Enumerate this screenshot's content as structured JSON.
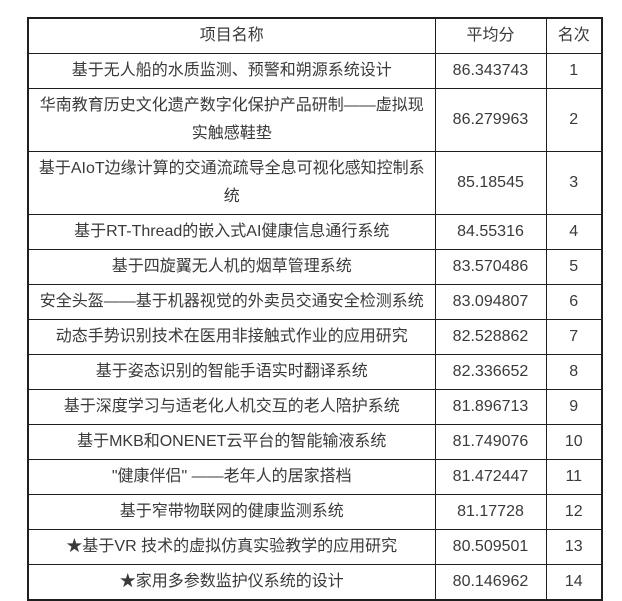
{
  "table": {
    "columns": [
      {
        "label": "项目名称"
      },
      {
        "label": "平均分"
      },
      {
        "label": "名次"
      }
    ],
    "rows": [
      {
        "name": "基于无人船的水质监测、预警和朔源系统设计",
        "score": "86.343743",
        "rank": "1"
      },
      {
        "name": "华南教育历史文化遗产数字化保护产品研制——虚拟现实触感鞋垫",
        "score": "86.279963",
        "rank": "2"
      },
      {
        "name": "基于AIoT边缘计算的交通流疏导全息可视化感知控制系统",
        "score": "85.18545",
        "rank": "3"
      },
      {
        "name": "基于RT-Thread的嵌入式AI健康信息通行系统",
        "score": "84.55316",
        "rank": "4"
      },
      {
        "name": "基于四旋翼无人机的烟草管理系统",
        "score": "83.570486",
        "rank": "5"
      },
      {
        "name": "安全头盔——基于机器视觉的外卖员交通安全检测系统",
        "score": "83.094807",
        "rank": "6"
      },
      {
        "name": "动态手势识别技术在医用非接触式作业的应用研究",
        "score": "82.528862",
        "rank": "7"
      },
      {
        "name": "基于姿态识别的智能手语实时翻译系统",
        "score": "82.336652",
        "rank": "8"
      },
      {
        "name": "基于深度学习与适老化人机交互的老人陪护系统",
        "score": "81.896713",
        "rank": "9"
      },
      {
        "name": "基于MKB和ONENET云平台的智能输液系统",
        "score": "81.749076",
        "rank": "10"
      },
      {
        "name": "\"健康伴侣\" ——老年人的居家搭档",
        "score": "81.472447",
        "rank": "11"
      },
      {
        "name": "基于窄带物联网的健康监测系统",
        "score": "81.17728",
        "rank": "12"
      },
      {
        "name": "★基于VR 技术的虚拟仿真实验教学的应用研究",
        "score": "80.509501",
        "rank": "13"
      },
      {
        "name": "★家用多参数监护仪系统的设计",
        "score": "80.146962",
        "rank": "14"
      }
    ]
  }
}
